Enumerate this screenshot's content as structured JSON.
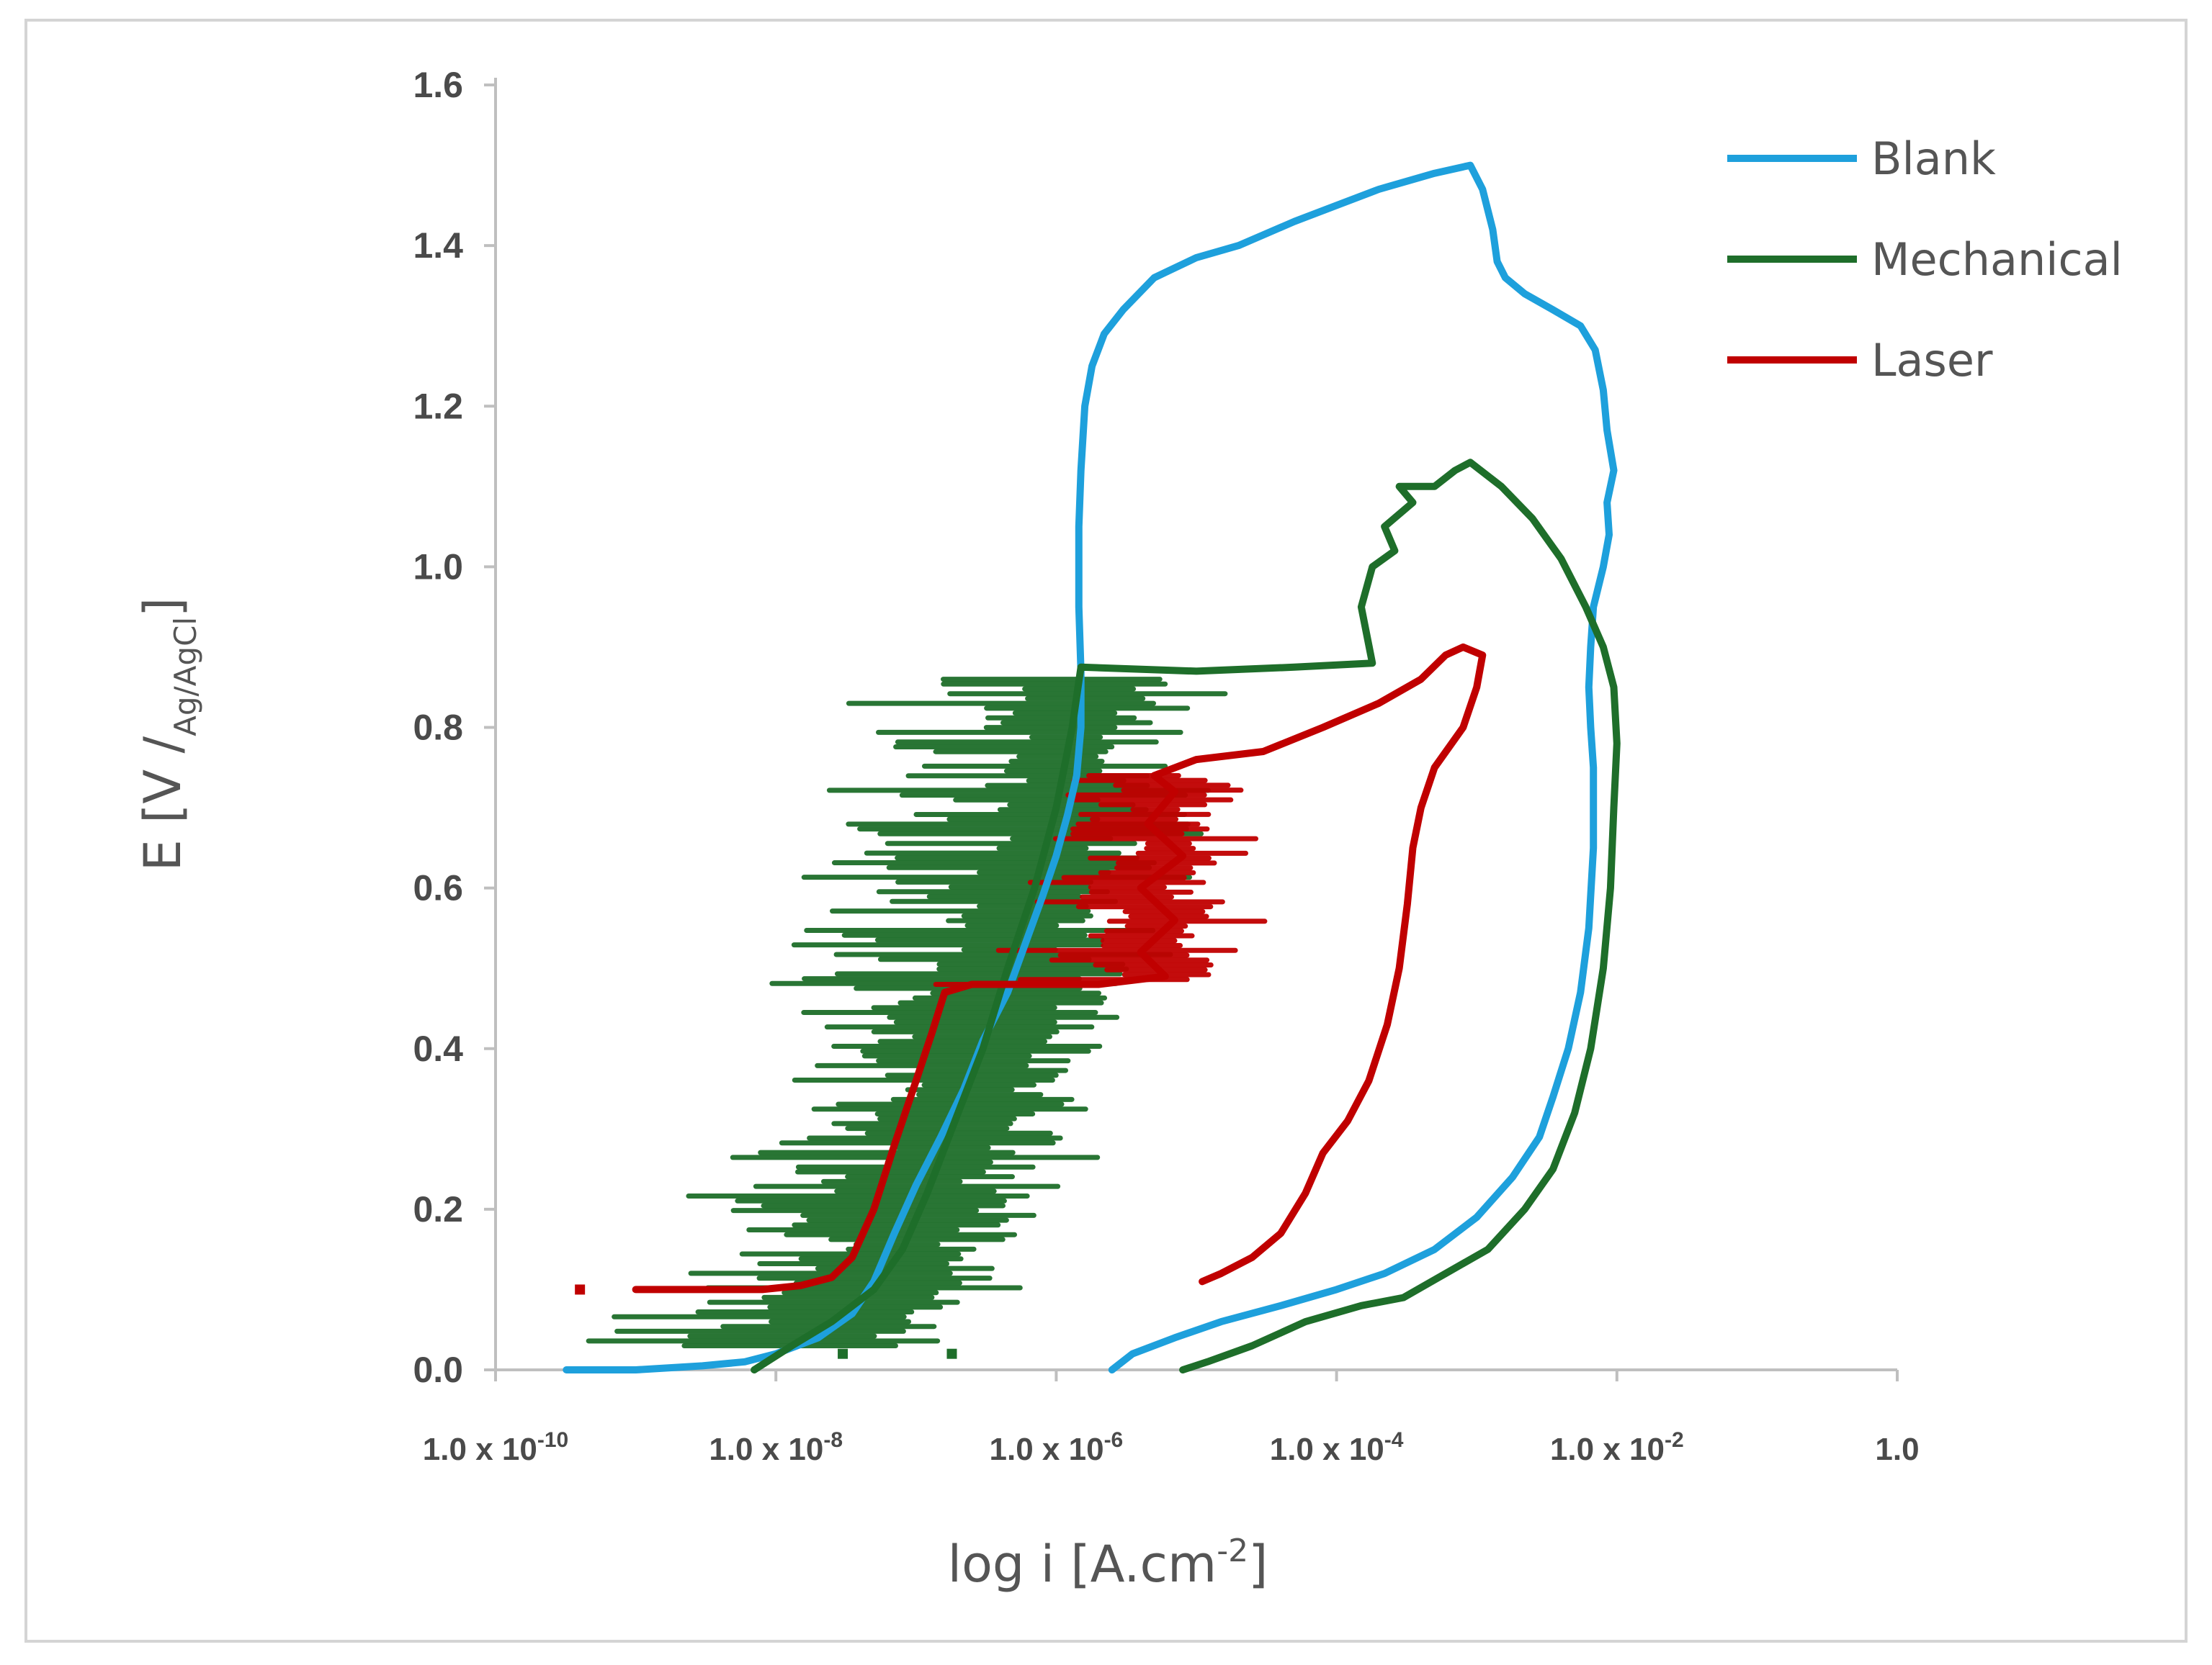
{
  "chart_data": {
    "type": "line",
    "xlabel": "log i [A.cm",
    "xlabel_sup": "-2",
    "xlabel_end": "]",
    "ylabel": "E [V /",
    "ylabel_sub": "Ag/AgCl",
    "ylabel_end": "]",
    "x_scale": "log",
    "xlim": [
      1e-10,
      1
    ],
    "ylim": [
      0,
      1.6
    ],
    "grid": false,
    "legend_position": "top-right",
    "y_ticks": [
      "0.0",
      "0.2",
      "0.4",
      "0.6",
      "0.8",
      "1.0",
      "1.2",
      "1.4",
      "1.6"
    ],
    "x_ticks": [
      {
        "base": "1.0 x 10",
        "exp": "-10"
      },
      {
        "base": "1.0 x 10",
        "exp": "-8"
      },
      {
        "base": "1.0 x 10",
        "exp": "-6"
      },
      {
        "base": "1.0 x 10",
        "exp": "-4"
      },
      {
        "base": "1.0 x 10",
        "exp": "-2"
      },
      {
        "base": "1.0",
        "exp": ""
      }
    ],
    "series": [
      {
        "name": "Blank",
        "color": "#1ea0dc",
        "points": [
          [
            3.2e-10,
            0.0
          ],
          [
            1e-09,
            0.0
          ],
          [
            3e-09,
            0.005
          ],
          [
            6e-09,
            0.01
          ],
          [
            1e-08,
            0.02
          ],
          [
            2e-08,
            0.04
          ],
          [
            3.5e-08,
            0.07
          ],
          [
            5e-08,
            0.11
          ],
          [
            7e-08,
            0.17
          ],
          [
            1e-07,
            0.23
          ],
          [
            1.5e-07,
            0.29
          ],
          [
            2.2e-07,
            0.35
          ],
          [
            3e-07,
            0.41
          ],
          [
            4.5e-07,
            0.47
          ],
          [
            6e-07,
            0.53
          ],
          [
            8e-07,
            0.59
          ],
          [
            1e-06,
            0.64
          ],
          [
            1.2e-06,
            0.69
          ],
          [
            1.4e-06,
            0.74
          ],
          [
            1.5e-06,
            0.8
          ],
          [
            1.5e-06,
            0.87
          ],
          [
            1.45e-06,
            0.95
          ],
          [
            1.45e-06,
            1.05
          ],
          [
            1.5e-06,
            1.12
          ],
          [
            1.6e-06,
            1.2
          ],
          [
            1.8e-06,
            1.25
          ],
          [
            2.2e-06,
            1.29
          ],
          [
            3e-06,
            1.32
          ],
          [
            5e-06,
            1.36
          ],
          [
            1e-05,
            1.385
          ],
          [
            2e-05,
            1.4
          ],
          [
            5e-05,
            1.43
          ],
          [
            0.0001,
            1.45
          ],
          [
            0.0002,
            1.47
          ],
          [
            0.0005,
            1.49
          ],
          [
            0.0009,
            1.5
          ],
          [
            0.0011,
            1.47
          ],
          [
            0.0013,
            1.42
          ],
          [
            0.0014,
            1.38
          ],
          [
            0.0016,
            1.36
          ],
          [
            0.0022,
            1.34
          ],
          [
            0.0035,
            1.32
          ],
          [
            0.0055,
            1.3
          ],
          [
            0.007,
            1.27
          ],
          [
            0.008,
            1.22
          ],
          [
            0.0085,
            1.17
          ],
          [
            0.0095,
            1.12
          ],
          [
            0.0085,
            1.08
          ],
          [
            0.0088,
            1.04
          ],
          [
            0.008,
            1.0
          ],
          [
            0.0068,
            0.95
          ],
          [
            0.0065,
            0.9
          ],
          [
            0.0063,
            0.85
          ],
          [
            0.0065,
            0.8
          ],
          [
            0.0068,
            0.75
          ],
          [
            0.0068,
            0.65
          ],
          [
            0.0063,
            0.55
          ],
          [
            0.0055,
            0.47
          ],
          [
            0.0045,
            0.4
          ],
          [
            0.0035,
            0.34
          ],
          [
            0.0028,
            0.29
          ],
          [
            0.0018,
            0.24
          ],
          [
            0.001,
            0.19
          ],
          [
            0.0005,
            0.15
          ],
          [
            0.00022,
            0.12
          ],
          [
            0.0001,
            0.1
          ],
          [
            4e-05,
            0.08
          ],
          [
            1.5e-05,
            0.06
          ],
          [
            7e-06,
            0.04
          ],
          [
            3.5e-06,
            0.02
          ],
          [
            2.5e-06,
            0.0
          ]
        ]
      },
      {
        "name": "Mechanical",
        "color": "#1e6e2a",
        "points": [
          [
            7e-09,
            0.0
          ],
          [
            1.3e-08,
            0.03
          ],
          [
            2.5e-08,
            0.06
          ],
          [
            5e-08,
            0.1
          ],
          [
            8e-08,
            0.15
          ],
          [
            1.2e-07,
            0.22
          ],
          [
            1.8e-07,
            0.3
          ],
          [
            3e-07,
            0.4
          ],
          [
            4.5e-07,
            0.5
          ],
          [
            7e-07,
            0.6
          ],
          [
            1e-06,
            0.7
          ],
          [
            1.3e-06,
            0.8
          ],
          [
            1.5e-06,
            0.875
          ],
          [
            1e-05,
            0.87
          ],
          [
            5e-05,
            0.875
          ],
          [
            0.00018,
            0.88
          ],
          [
            0.00015,
            0.95
          ],
          [
            0.00018,
            1.0
          ],
          [
            0.00026,
            1.02
          ],
          [
            0.00022,
            1.05
          ],
          [
            0.00035,
            1.08
          ],
          [
            0.00028,
            1.1
          ],
          [
            0.0005,
            1.1
          ],
          [
            0.0007,
            1.12
          ],
          [
            0.0009,
            1.13
          ],
          [
            0.0015,
            1.1
          ],
          [
            0.0025,
            1.06
          ],
          [
            0.004,
            1.01
          ],
          [
            0.006,
            0.95
          ],
          [
            0.008,
            0.9
          ],
          [
            0.0095,
            0.85
          ],
          [
            0.01,
            0.78
          ],
          [
            0.0095,
            0.7
          ],
          [
            0.009,
            0.6
          ],
          [
            0.008,
            0.5
          ],
          [
            0.0065,
            0.4
          ],
          [
            0.005,
            0.32
          ],
          [
            0.0035,
            0.25
          ],
          [
            0.0022,
            0.2
          ],
          [
            0.0012,
            0.15
          ],
          [
            0.0006,
            0.12
          ],
          [
            0.0003,
            0.09
          ],
          [
            0.00015,
            0.08
          ],
          [
            6e-05,
            0.06
          ],
          [
            2.5e-05,
            0.03
          ],
          [
            1.2e-05,
            0.01
          ],
          [
            8e-06,
            0.0
          ]
        ]
      },
      {
        "name": "Laser",
        "color": "#c00000",
        "points": [
          [
            1e-09,
            0.1
          ],
          [
            3e-09,
            0.1
          ],
          [
            8e-09,
            0.1
          ],
          [
            1.5e-08,
            0.105
          ],
          [
            2.5e-08,
            0.115
          ],
          [
            3.5e-08,
            0.14
          ],
          [
            5e-08,
            0.2
          ],
          [
            7e-08,
            0.28
          ],
          [
            1e-07,
            0.36
          ],
          [
            1.3e-07,
            0.42
          ],
          [
            1.6e-07,
            0.47
          ],
          [
            2.5e-07,
            0.48
          ],
          [
            5e-07,
            0.48
          ],
          [
            1e-06,
            0.48
          ],
          [
            2e-06,
            0.48
          ],
          [
            6e-06,
            0.49
          ],
          [
            4e-06,
            0.52
          ],
          [
            7e-06,
            0.56
          ],
          [
            4e-06,
            0.6
          ],
          [
            8e-06,
            0.64
          ],
          [
            4.5e-06,
            0.68
          ],
          [
            7e-06,
            0.72
          ],
          [
            5e-06,
            0.74
          ],
          [
            1e-05,
            0.76
          ],
          [
            3e-05,
            0.77
          ],
          [
            8e-05,
            0.8
          ],
          [
            0.0002,
            0.83
          ],
          [
            0.0004,
            0.86
          ],
          [
            0.0006,
            0.89
          ],
          [
            0.0008,
            0.9
          ],
          [
            0.0011,
            0.89
          ],
          [
            0.001,
            0.85
          ],
          [
            0.0008,
            0.8
          ],
          [
            0.0005,
            0.75
          ],
          [
            0.0004,
            0.7
          ],
          [
            0.00035,
            0.65
          ],
          [
            0.00032,
            0.58
          ],
          [
            0.00028,
            0.5
          ],
          [
            0.00023,
            0.43
          ],
          [
            0.00017,
            0.36
          ],
          [
            0.00012,
            0.31
          ],
          [
            8e-05,
            0.27
          ],
          [
            6e-05,
            0.22
          ],
          [
            4e-05,
            0.17
          ],
          [
            2.5e-05,
            0.14
          ],
          [
            1.5e-05,
            0.12
          ],
          [
            1.1e-05,
            0.11
          ]
        ]
      }
    ],
    "scatter_bands": [
      {
        "series": "Mechanical",
        "y_from": 0.03,
        "y_to": 0.86
      },
      {
        "series": "Laser",
        "y_from": 0.48,
        "y_to": 0.74
      }
    ],
    "isolated_points": [
      {
        "series": "Laser",
        "x": 4e-10,
        "y": 0.1
      },
      {
        "series": "Mechanical",
        "x": 1.8e-07,
        "y": 0.02
      },
      {
        "series": "Mechanical",
        "x": 3e-08,
        "y": 0.02
      }
    ]
  }
}
